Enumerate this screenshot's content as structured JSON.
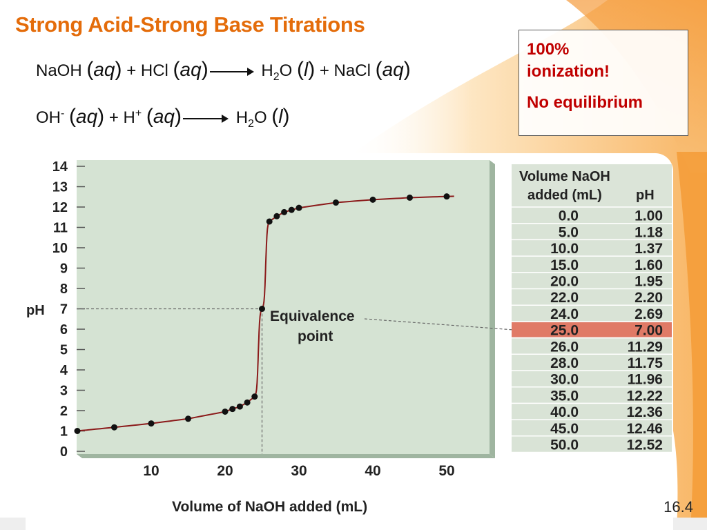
{
  "slide": {
    "title": "Strong Acid-Strong Base Titrations",
    "page_number": "16.4",
    "equation1": {
      "r1": "NaOH",
      "p1": "(",
      "s1": "aq",
      "q1": ")",
      "plus1": "+ HCl",
      "p2": "(",
      "s2": "aq",
      "q2": ")",
      "prod1_a": "H",
      "prod1_sub": "2",
      "prod1_b": "O",
      "p3": "(",
      "s3": "l",
      "q3": ")",
      "plus2": "+ NaCl",
      "p4": "(",
      "s4": "aq",
      "q4": ")"
    },
    "equation2": {
      "r1": "OH",
      "r1_sup": "-",
      "p1": "(",
      "s1": "aq",
      "q1": ")",
      "plus1": "+ H",
      "plus1_sup": "+",
      "p2": "(",
      "s2": "aq",
      "q2": ")",
      "prod_a": "H",
      "prod_sub": "2",
      "prod_b": "O",
      "p3": "(",
      "s3": "l",
      "q3": ")"
    },
    "note": {
      "line1a": "100%",
      "line1b": "ionization!",
      "line2": "No equilibrium"
    }
  },
  "colors": {
    "title": "#e46c0a",
    "note_text": "#c00000",
    "plot_bg": "#d5e3d3",
    "curve": "#8b1a1a",
    "table_bg": "#d9e3d6",
    "highlight": "#e07a66"
  },
  "chart_data": {
    "type": "line",
    "xlabel": "Volume of NaOH added (mL)",
    "ylabel": "pH",
    "xlim": [
      0,
      50
    ],
    "ylim": [
      0,
      14
    ],
    "xticks": [
      "10",
      "20",
      "30",
      "40",
      "50"
    ],
    "yticks": [
      "0",
      "1",
      "2",
      "3",
      "4",
      "5",
      "6",
      "7",
      "8",
      "9",
      "10",
      "11",
      "12",
      "13",
      "14"
    ],
    "annotation": {
      "text_line1": "Equivalence",
      "text_line2": "point",
      "x": 25.0,
      "y": 7.0
    },
    "points": [
      {
        "x": 0.0,
        "y": 1.0
      },
      {
        "x": 5.0,
        "y": 1.18
      },
      {
        "x": 10.0,
        "y": 1.37
      },
      {
        "x": 15.0,
        "y": 1.6
      },
      {
        "x": 20.0,
        "y": 1.95
      },
      {
        "x": 21.0,
        "y": 2.08
      },
      {
        "x": 22.0,
        "y": 2.2
      },
      {
        "x": 23.0,
        "y": 2.4
      },
      {
        "x": 24.0,
        "y": 2.69
      },
      {
        "x": 25.0,
        "y": 7.0
      },
      {
        "x": 26.0,
        "y": 11.29
      },
      {
        "x": 27.0,
        "y": 11.55
      },
      {
        "x": 28.0,
        "y": 11.75
      },
      {
        "x": 29.0,
        "y": 11.86
      },
      {
        "x": 30.0,
        "y": 11.96
      },
      {
        "x": 35.0,
        "y": 12.22
      },
      {
        "x": 40.0,
        "y": 12.36
      },
      {
        "x": 45.0,
        "y": 12.46
      },
      {
        "x": 50.0,
        "y": 12.52
      }
    ],
    "table": {
      "header1": [
        "Volume NaOH",
        ""
      ],
      "header2": [
        "added (mL)",
        "pH"
      ],
      "highlight_row": 8,
      "rows": [
        [
          "0.0",
          "1.00"
        ],
        [
          "5.0",
          "1.18"
        ],
        [
          "10.0",
          "1.37"
        ],
        [
          "15.0",
          "1.60"
        ],
        [
          "20.0",
          "1.95"
        ],
        [
          "22.0",
          "2.20"
        ],
        [
          "24.0",
          "2.69"
        ],
        [
          "25.0",
          "7.00"
        ],
        [
          "26.0",
          "11.29"
        ],
        [
          "28.0",
          "11.75"
        ],
        [
          "30.0",
          "11.96"
        ],
        [
          "35.0",
          "12.22"
        ],
        [
          "40.0",
          "12.36"
        ],
        [
          "45.0",
          "12.46"
        ],
        [
          "50.0",
          "12.52"
        ]
      ]
    }
  }
}
